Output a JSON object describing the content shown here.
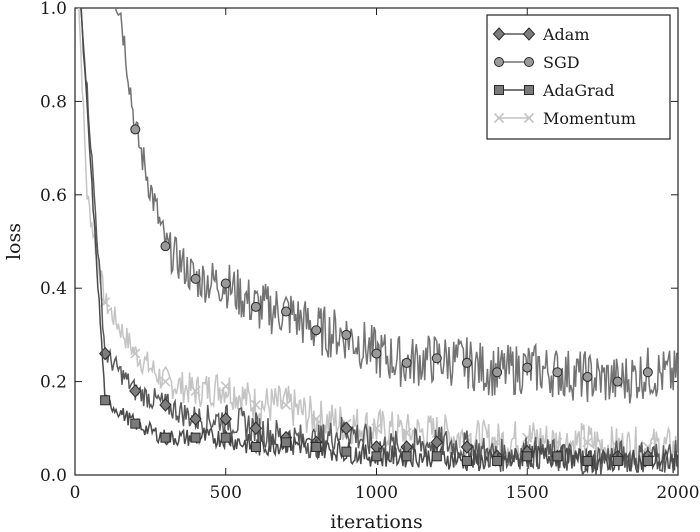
{
  "chart_data": {
    "type": "line",
    "title": "",
    "xlabel": "iterations",
    "ylabel": "loss",
    "xlim": [
      0,
      2000
    ],
    "ylim": [
      0,
      1.0
    ],
    "xticks": [
      0,
      500,
      1000,
      1500,
      2000
    ],
    "xtick_labels": [
      "0",
      "500",
      "1000",
      "1500",
      "2000"
    ],
    "yticks": [
      0.0,
      0.2,
      0.4,
      0.6,
      0.8,
      1.0
    ],
    "ytick_labels": [
      "0.0",
      "0.2",
      "0.4",
      "0.6",
      "0.8",
      "1.0"
    ],
    "grid": false,
    "legend_position": "top-right",
    "series": [
      {
        "name": "Adam",
        "color": "#5a5a5a",
        "marker": "diamond",
        "x": [
          100,
          200,
          300,
          400,
          500,
          600,
          700,
          800,
          900,
          1000,
          1100,
          1200,
          1300,
          1400,
          1500,
          1600,
          1700,
          1800,
          1900
        ],
        "y": [
          0.26,
          0.18,
          0.15,
          0.12,
          0.12,
          0.1,
          0.08,
          0.07,
          0.1,
          0.06,
          0.06,
          0.07,
          0.06,
          0.04,
          0.05,
          0.04,
          0.03,
          0.04,
          0.04
        ]
      },
      {
        "name": "SGD",
        "color": "#737373",
        "marker": "circle",
        "x": [
          200,
          300,
          400,
          500,
          600,
          700,
          800,
          900,
          1000,
          1100,
          1200,
          1300,
          1400,
          1500,
          1600,
          1700,
          1800,
          1900
        ],
        "y": [
          0.74,
          0.49,
          0.42,
          0.41,
          0.36,
          0.35,
          0.31,
          0.3,
          0.26,
          0.24,
          0.25,
          0.24,
          0.22,
          0.23,
          0.22,
          0.21,
          0.2,
          0.22
        ]
      },
      {
        "name": "AdaGrad",
        "color": "#4a4a4a",
        "marker": "square",
        "x": [
          100,
          200,
          300,
          400,
          500,
          600,
          700,
          800,
          900,
          1000,
          1100,
          1200,
          1300,
          1400,
          1500,
          1600,
          1700,
          1800,
          1900
        ],
        "y": [
          0.16,
          0.11,
          0.08,
          0.08,
          0.08,
          0.06,
          0.07,
          0.06,
          0.05,
          0.04,
          0.04,
          0.04,
          0.03,
          0.03,
          0.04,
          0.04,
          0.03,
          0.03,
          0.03
        ]
      },
      {
        "name": "Momentum",
        "color": "#c4c4c4",
        "marker": "x",
        "x": [
          100,
          200,
          300,
          400,
          500,
          600,
          700,
          800,
          900,
          1000,
          1100,
          1200,
          1300,
          1400,
          1500,
          1600,
          1700,
          1800,
          1900
        ],
        "y": [
          0.37,
          0.26,
          0.2,
          0.18,
          0.19,
          0.15,
          0.15,
          0.12,
          0.11,
          0.1,
          0.09,
          0.09,
          0.08,
          0.07,
          0.08,
          0.07,
          0.07,
          0.06,
          0.06
        ]
      }
    ]
  }
}
